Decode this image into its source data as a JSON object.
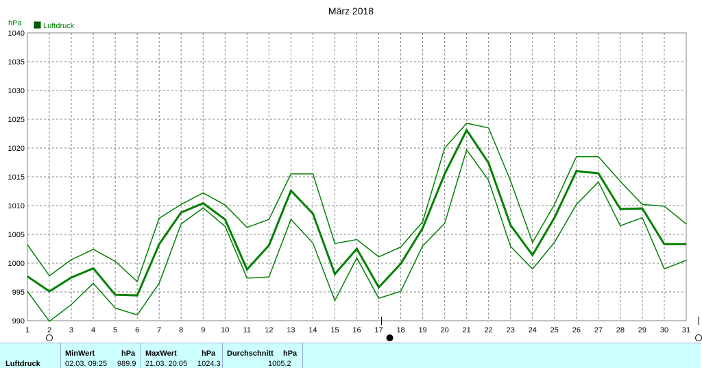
{
  "chart_data": {
    "type": "line",
    "title": "März 2018",
    "ylabel": "hPa",
    "legend": {
      "label": "Luftdruck",
      "color": "#008000",
      "placement": "top-left"
    },
    "ylim": [
      990,
      1040
    ],
    "yticks": [
      990,
      995,
      1000,
      1005,
      1010,
      1015,
      1020,
      1025,
      1030,
      1035,
      1040
    ],
    "xlim": [
      1,
      31
    ],
    "x": [
      1,
      2,
      3,
      4,
      5,
      6,
      7,
      8,
      9,
      10,
      11,
      12,
      13,
      14,
      15,
      16,
      17,
      18,
      19,
      20,
      21,
      22,
      23,
      24,
      25,
      26,
      27,
      28,
      29,
      30,
      31
    ],
    "grid": true,
    "series": [
      {
        "role": "max",
        "width": 1.5,
        "values": [
          1003.2,
          997.8,
          1000.6,
          1002.4,
          1000.3,
          996.8,
          1007.8,
          1010.2,
          1012.2,
          1010.1,
          1006.2,
          1007.6,
          1015.5,
          1015.5,
          1003.4,
          1004.1,
          1001.1,
          1002.8,
          1007.2,
          1020.0,
          1024.3,
          1023.5,
          1014.3,
          1003.6,
          1010.2,
          1018.5,
          1018.5,
          1014.2,
          1010.2,
          1009.9,
          1006.8
        ]
      },
      {
        "role": "avg",
        "width": 3,
        "values": [
          997.7,
          995.1,
          997.5,
          999.1,
          994.5,
          994.4,
          1003.3,
          1008.8,
          1010.4,
          1007.6,
          998.9,
          1003.1,
          1012.6,
          1008.6,
          998.1,
          1002.5,
          995.8,
          999.9,
          1006.1,
          1015.5,
          1023.1,
          1017.4,
          1006.6,
          1001.4,
          1007.9,
          1016.0,
          1015.6,
          1009.4,
          1009.5,
          1003.3,
          1003.3
        ]
      },
      {
        "role": "min",
        "width": 1.5,
        "values": [
          995.1,
          989.9,
          992.8,
          996.5,
          992.2,
          991.0,
          996.5,
          1006.8,
          1009.6,
          1006.4,
          997.4,
          997.6,
          1007.6,
          1003.5,
          993.5,
          1000.9,
          993.9,
          995.1,
          1003.0,
          1006.9,
          1019.7,
          1014.4,
          1002.9,
          999.0,
          1003.6,
          1010.2,
          1014.1,
          1006.5,
          1007.9,
          999.0,
          1000.5
        ]
      }
    ],
    "markers": {
      "new_moon_days": [
        2,
        31
      ],
      "full_moon_days": [
        17.5
      ],
      "tick_marks": [
        17,
        31
      ]
    }
  },
  "summary": {
    "row_label": "Luftdruck",
    "min": {
      "header": "MinWert",
      "unit": "hPa",
      "when": "02.03.  09:25",
      "value": "989.9"
    },
    "max": {
      "header": "MaxWert",
      "unit": "hPa",
      "when": "21.03.  20:05",
      "value": "1024.3"
    },
    "avg": {
      "header": "Durchschnitt",
      "unit": "hPa",
      "value": "1005.2"
    }
  }
}
